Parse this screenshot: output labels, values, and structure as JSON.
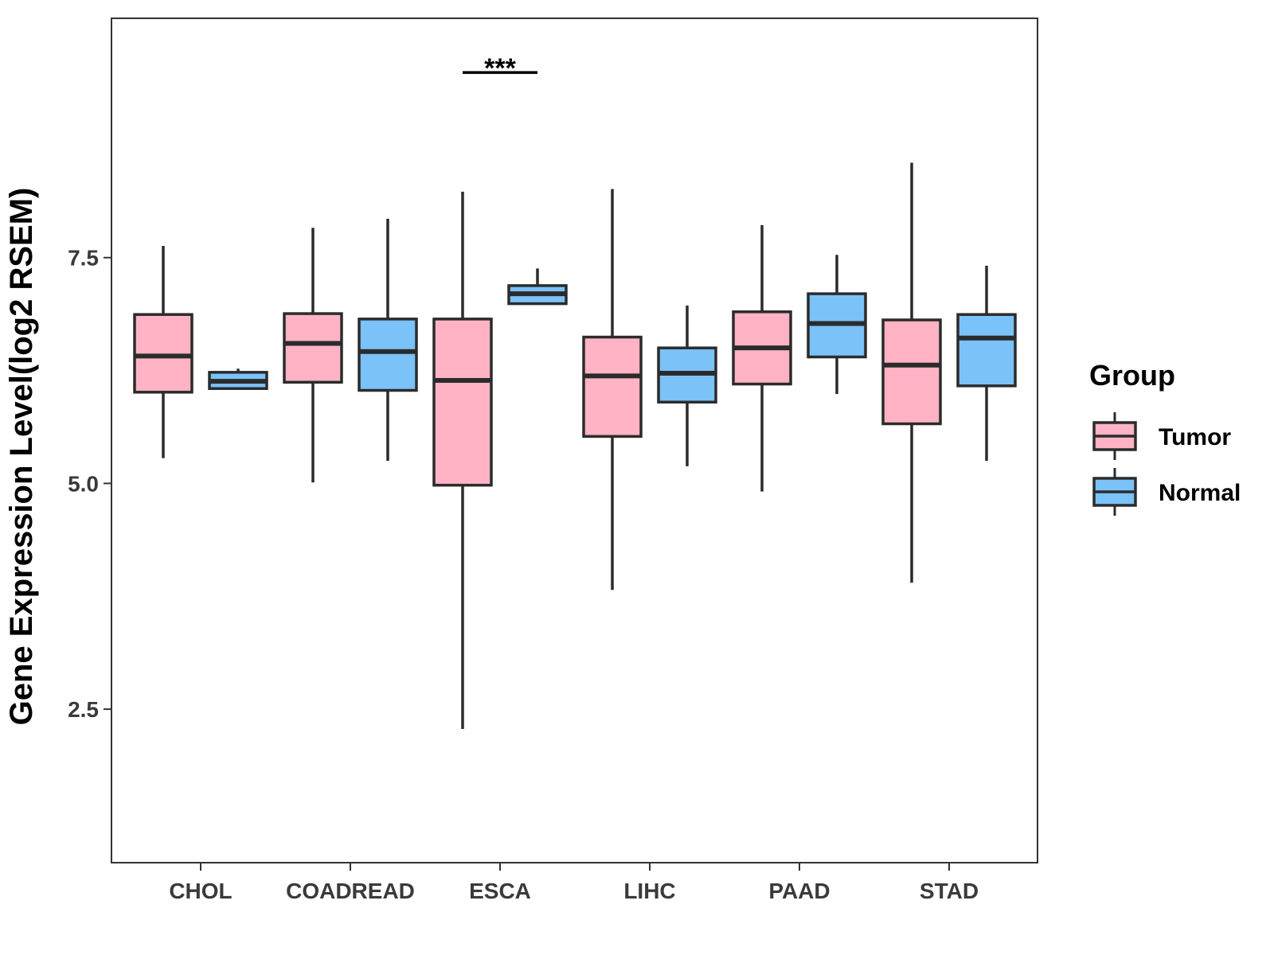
{
  "chart_data": {
    "type": "boxplot",
    "title": "",
    "xlabel": "",
    "ylabel": "Gene Expression Level(log2 RSEM)",
    "ylim": [
      0.8,
      10.15
    ],
    "yticks": [
      2.5,
      5.0,
      7.5
    ],
    "ytick_labels": [
      "2.5",
      "5.0",
      "7.5"
    ],
    "categories": [
      "CHOL",
      "COADREAD",
      "ESCA",
      "LIHC",
      "PAAD",
      "STAD"
    ],
    "legend": {
      "title": "Group",
      "position": "right",
      "entries": [
        {
          "name": "Tumor",
          "color": "#FFB3C4"
        },
        {
          "name": "Normal",
          "color": "#7AC2F7"
        }
      ]
    },
    "series": [
      {
        "name": "Tumor",
        "color": "#FFB3C4",
        "boxes": [
          {
            "category": "CHOL",
            "whisker_low": 5.28,
            "q1": 6.01,
            "median": 6.41,
            "q3": 6.87,
            "whisker_high": 7.63
          },
          {
            "category": "COADREAD",
            "whisker_low": 5.01,
            "q1": 6.12,
            "median": 6.55,
            "q3": 6.88,
            "whisker_high": 7.83
          },
          {
            "category": "ESCA",
            "whisker_low": 2.28,
            "q1": 4.98,
            "median": 6.14,
            "q3": 6.82,
            "whisker_high": 8.23
          },
          {
            "category": "LIHC",
            "whisker_low": 3.82,
            "q1": 5.52,
            "median": 6.19,
            "q3": 6.62,
            "whisker_high": 8.26
          },
          {
            "category": "PAAD",
            "whisker_low": 4.91,
            "q1": 6.1,
            "median": 6.5,
            "q3": 6.9,
            "whisker_high": 7.86
          },
          {
            "category": "STAD",
            "whisker_low": 3.9,
            "q1": 5.66,
            "median": 6.31,
            "q3": 6.81,
            "whisker_high": 8.55
          }
        ]
      },
      {
        "name": "Normal",
        "color": "#7AC2F7",
        "boxes": [
          {
            "category": "CHOL",
            "whisker_low": 6.05,
            "q1": 6.05,
            "median": 6.13,
            "q3": 6.23,
            "whisker_high": 6.27
          },
          {
            "category": "COADREAD",
            "whisker_low": 5.25,
            "q1": 6.03,
            "median": 6.46,
            "q3": 6.82,
            "whisker_high": 7.93
          },
          {
            "category": "ESCA",
            "whisker_low": 6.99,
            "q1": 6.99,
            "median": 7.1,
            "q3": 7.19,
            "whisker_high": 7.38
          },
          {
            "category": "LIHC",
            "whisker_low": 5.19,
            "q1": 5.9,
            "median": 6.22,
            "q3": 6.5,
            "whisker_high": 6.97
          },
          {
            "category": "PAAD",
            "whisker_low": 5.99,
            "q1": 6.4,
            "median": 6.77,
            "q3": 7.1,
            "whisker_high": 7.53
          },
          {
            "category": "STAD",
            "whisker_low": 5.25,
            "q1": 6.08,
            "median": 6.61,
            "q3": 6.87,
            "whisker_high": 7.41
          }
        ]
      }
    ],
    "annotations": [
      {
        "category": "ESCA",
        "text": "***",
        "y": 9.55
      }
    ]
  }
}
